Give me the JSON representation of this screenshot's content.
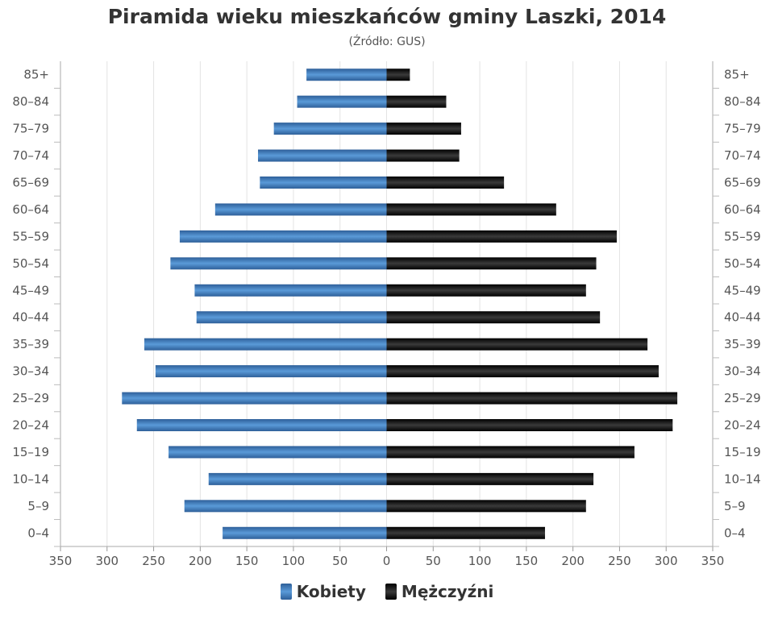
{
  "chart_data": {
    "type": "bar",
    "title": "Piramida wieku mieszkańców gminy Laszki, 2014",
    "subtitle": "(Źródło: GUS)",
    "categories": [
      "0–4",
      "5–9",
      "10–14",
      "15–19",
      "20–24",
      "25–29",
      "30–34",
      "35–39",
      "40–44",
      "45–49",
      "50–54",
      "55–59",
      "60–64",
      "65–69",
      "70–74",
      "75–79",
      "80–84",
      "85+"
    ],
    "series": [
      {
        "name": "Kobiety",
        "color": "#3d7cc1",
        "values": [
          176,
          217,
          191,
          234,
          268,
          284,
          248,
          260,
          204,
          206,
          232,
          222,
          184,
          136,
          138,
          121,
          96,
          86
        ]
      },
      {
        "name": "Mężczyźni",
        "color": "#111111",
        "values": [
          170,
          214,
          222,
          266,
          307,
          312,
          292,
          280,
          229,
          214,
          225,
          247,
          182,
          126,
          78,
          80,
          64,
          25
        ]
      }
    ],
    "xlim": [
      -350,
      350
    ],
    "xticks": [
      "350",
      "300",
      "250",
      "200",
      "150",
      "100",
      "50",
      "0",
      "50",
      "100",
      "150",
      "200",
      "250",
      "300",
      "350"
    ],
    "grid": true,
    "legend_position": "bottom"
  }
}
